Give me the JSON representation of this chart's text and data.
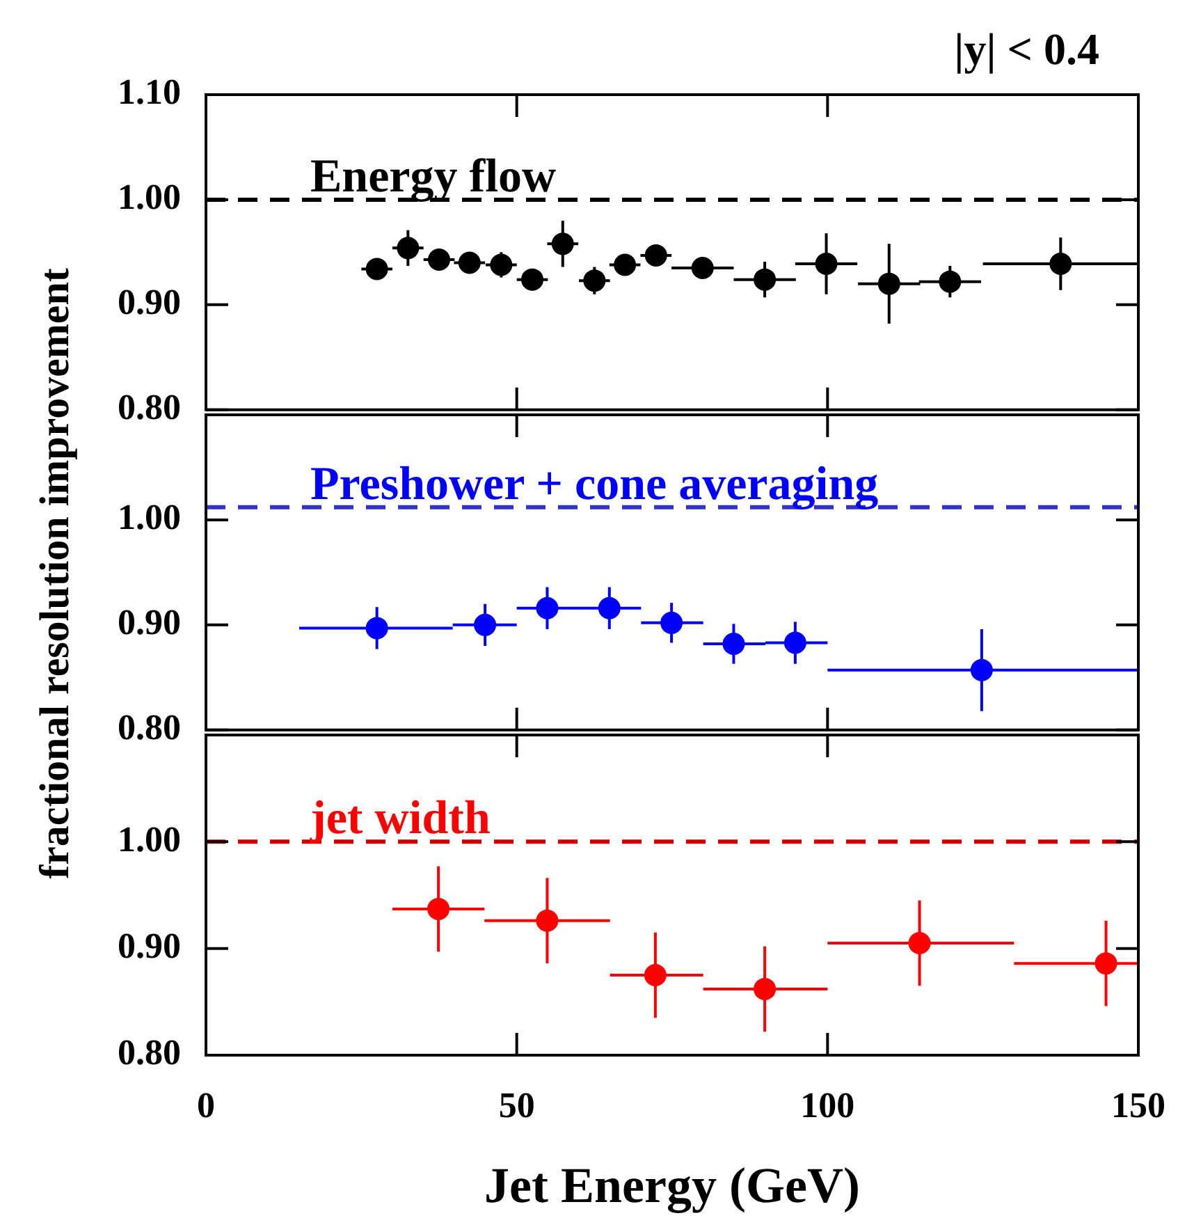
{
  "chart_data": [
    {
      "type": "scatter",
      "annotations": [
        "|y| < 0.4"
      ],
      "marker": "circle",
      "tick_labels": "y",
      "xlim": [
        0,
        150
      ],
      "xticks": [
        0,
        50,
        100,
        150
      ],
      "ylim": [
        0.8,
        1.1
      ],
      "yticks": [
        {
          "value": 0.8,
          "label": "0.80"
        },
        {
          "value": 0.9,
          "label": "0.90"
        },
        {
          "value": 1.0,
          "label": "1.00"
        },
        {
          "value": 1.1,
          "label": "1.10"
        }
      ],
      "ref_lines": [
        {
          "axis": "y",
          "value": 1.0,
          "color": "#000000",
          "line_style": "dashed"
        }
      ],
      "series": [
        {
          "name": "Energy flow",
          "color": "#000000",
          "x": [
            27.5,
            32.5,
            37.5,
            42.4,
            47.5,
            52.5,
            57.4,
            62.5,
            67.4,
            72.4,
            79.9,
            89.9,
            99.8,
            109.9,
            119.7,
            137.5
          ],
          "values": [
            0.934,
            0.954,
            0.943,
            0.94,
            0.938,
            0.924,
            0.958,
            0.923,
            0.938,
            0.947,
            0.935,
            0.924,
            0.939,
            0.92,
            0.922,
            0.939
          ],
          "errors": [
            null,
            0.017,
            null,
            null,
            0.012,
            null,
            0.022,
            0.013,
            null,
            null,
            null,
            0.017,
            0.029,
            0.038,
            0.015,
            0.025
          ],
          "xerrors": [
            2.5,
            2.5,
            2.5,
            2.5,
            2.5,
            2.5,
            2.5,
            2.5,
            2.5,
            2.5,
            5,
            5,
            5,
            5,
            5,
            12.5
          ]
        }
      ]
    },
    {
      "type": "scatter",
      "ylabel": "fractional resolution improvement",
      "marker": "circle",
      "tick_labels": "y",
      "xlim": [
        0,
        150
      ],
      "xticks": [
        0,
        50,
        100,
        150
      ],
      "ylim": [
        0.8,
        1.1
      ],
      "yticks": [
        {
          "value": 0.8,
          "label": "0.80"
        },
        {
          "value": 0.9,
          "label": "0.90"
        },
        {
          "value": 1.0,
          "label": "1.00"
        }
      ],
      "ref_lines": [
        {
          "axis": "y",
          "value": 1.012,
          "color": "#3333cc",
          "line_style": "dashed"
        }
      ],
      "series": [
        {
          "name": "Preshower + cone averaging",
          "color": "#0000ff",
          "x": [
            27.5,
            44.9,
            54.9,
            64.9,
            74.9,
            84.9,
            94.8,
            124.8
          ],
          "values": [
            0.897,
            0.9,
            0.916,
            0.916,
            0.902,
            0.882,
            0.883,
            0.857
          ],
          "errors": [
            0.02,
            0.02,
            0.02,
            0.02,
            0.019,
            0.019,
            0.02,
            0.039
          ],
          "xerrors": [
            [
              15,
              39.7
            ],
            [
              39.7,
              50
            ],
            [
              50,
              60
            ],
            [
              60,
              70
            ],
            [
              70,
              80
            ],
            [
              80,
              90
            ],
            [
              90,
              100
            ],
            [
              100,
              150
            ]
          ]
        }
      ]
    },
    {
      "type": "scatter",
      "xlabel": "Jet Energy (GeV)",
      "marker": "circle",
      "xlim": [
        0,
        150
      ],
      "xticks": [
        0,
        50,
        100,
        150
      ],
      "ylim": [
        0.8,
        1.1
      ],
      "yticks": [
        {
          "value": 0.8,
          "label": "0.80"
        },
        {
          "value": 0.9,
          "label": "0.90"
        },
        {
          "value": 1.0,
          "label": "1.00"
        }
      ],
      "ref_lines": [
        {
          "axis": "y",
          "value": 1.0,
          "color": "#cc0000",
          "line_style": "dashed"
        }
      ],
      "series": [
        {
          "name": "jet width",
          "color": "#ff0000",
          "x": [
            37.4,
            54.9,
            72.3,
            89.9,
            114.8,
            144.8
          ],
          "values": [
            0.937,
            0.926,
            0.875,
            0.862,
            0.905,
            0.886
          ],
          "errors": [
            0.04,
            0.04,
            0.04,
            0.04,
            0.04,
            0.04
          ],
          "xerrors": [
            [
              30,
              44.8
            ],
            [
              44.8,
              65
            ],
            [
              65,
              80
            ],
            [
              80,
              100
            ],
            [
              100,
              130
            ],
            [
              130,
              150
            ]
          ]
        }
      ]
    }
  ]
}
